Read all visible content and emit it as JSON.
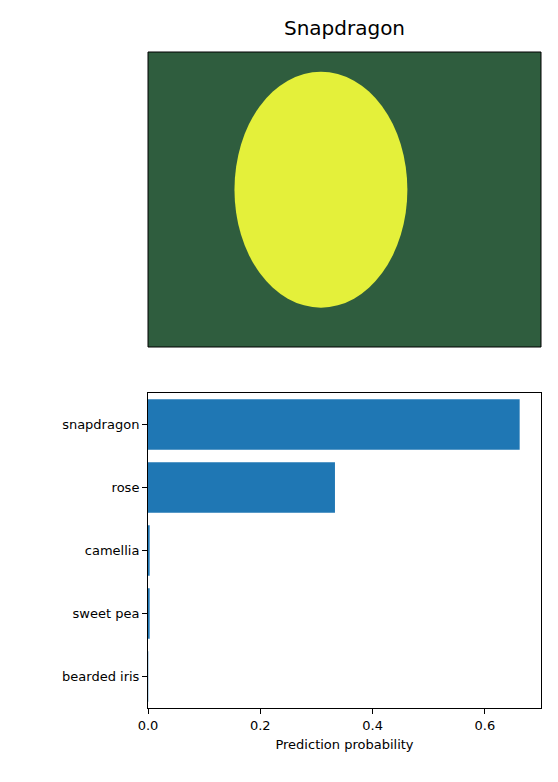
{
  "chart_data": {
    "type": "bar",
    "orientation": "horizontal",
    "title": "Snapdragon",
    "categories": [
      "snapdragon",
      "rose",
      "camellia",
      "sweet pea",
      "bearded iris"
    ],
    "values": [
      0.662,
      0.333,
      0.003,
      0.003,
      0.0005
    ],
    "color": "#1f77b4",
    "xlabel": "Prediction probability",
    "xlim": [
      0,
      0.7
    ],
    "xticks": [
      {
        "value": 0,
        "label": "0.0"
      },
      0.2,
      0.4,
      0.6
    ],
    "grid": false
  }
}
